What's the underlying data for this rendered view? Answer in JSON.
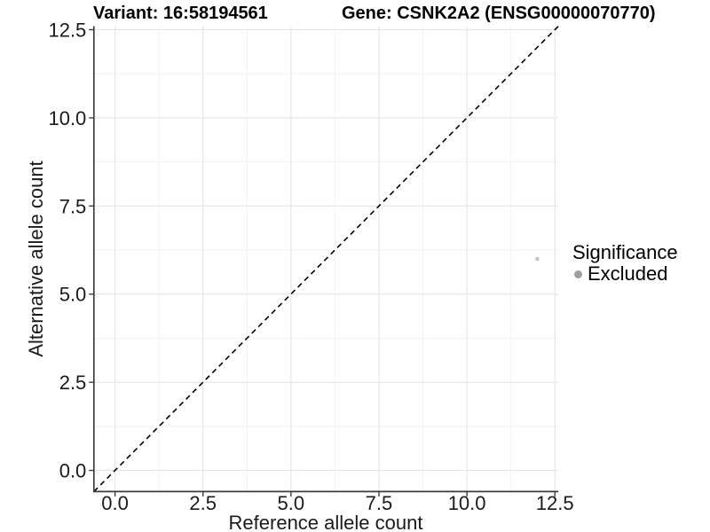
{
  "chart_data": {
    "type": "scatter",
    "title_left": "Variant: 16:58194561",
    "title_right": "Gene: CSNK2A2 (ENSG00000070770)",
    "xlabel": "Reference allele count",
    "ylabel": "Alternative allele count",
    "xlim": [
      -0.6,
      12.6
    ],
    "ylim": [
      -0.6,
      12.6
    ],
    "x_tick_values": [
      0,
      2.5,
      5,
      7.5,
      10,
      12.5
    ],
    "x_tick_labels": [
      "0.0",
      "2.5",
      "5.0",
      "7.5",
      "10.0",
      "12.5"
    ],
    "y_tick_values": [
      0,
      2.5,
      5,
      7.5,
      10,
      12.5
    ],
    "y_tick_labels": [
      "0.0",
      "2.5",
      "5.0",
      "7.5",
      "10.0",
      "12.5"
    ],
    "x_minor_ticks": [
      1.25,
      3.75,
      6.25,
      8.75,
      11.25
    ],
    "y_minor_ticks": [
      1.25,
      3.75,
      6.25,
      8.75,
      11.25
    ],
    "grid": "major+minor",
    "identity_line": {
      "slope": 1,
      "intercept": 0,
      "style": "dashed",
      "color": "#000000"
    },
    "series": [
      {
        "name": "Excluded",
        "color": "#c4c4c4",
        "points": [
          {
            "x": 12,
            "y": 6
          }
        ]
      }
    ],
    "legend": {
      "title": "Significance",
      "position": "right",
      "entries": [
        {
          "label": "Excluded",
          "color": "#9e9e9e"
        }
      ]
    }
  },
  "colors": {
    "background": "#ffffff",
    "axis_line": "#3c3c3c",
    "tick_label": "#1a1a1a",
    "grid_major": "#e6e6e6",
    "grid_minor": "#f2f2f2"
  }
}
